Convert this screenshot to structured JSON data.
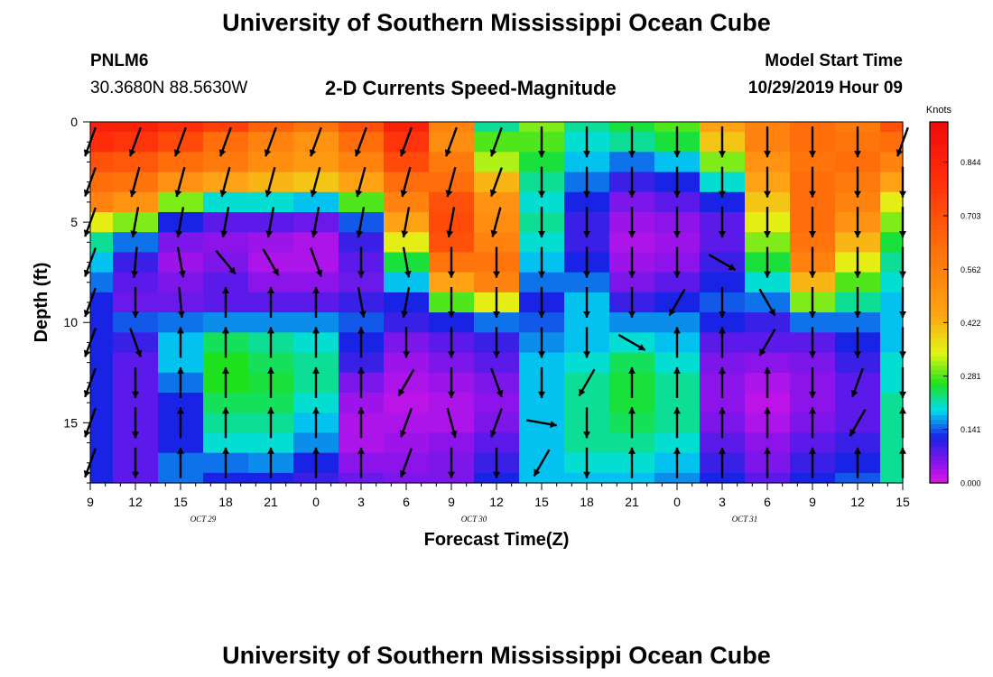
{
  "header": {
    "title": "University of Southern Mississippi Ocean Cube",
    "station": "PNLM6",
    "coords": "30.3680N 88.5630W",
    "product": "2-D Currents Speed-Magnitude",
    "model_label": "Model Start Time",
    "model_time": "10/29/2019 Hour 09"
  },
  "footer": {
    "title": "University of Southern Mississippi Ocean Cube"
  },
  "chart_data": {
    "type": "heatmap",
    "xlabel": "Forecast Time(Z)",
    "ylabel": "Depth (ft)",
    "x_tick_labels": [
      "9",
      "12",
      "15",
      "18",
      "21",
      "0",
      "3",
      "6",
      "9",
      "12",
      "15",
      "18",
      "21",
      "0",
      "3",
      "6",
      "9",
      "12",
      "15"
    ],
    "date_labels": [
      {
        "label": "OCT 29",
        "after_tick": 2
      },
      {
        "label": "OCT 30",
        "after_tick": 8
      },
      {
        "label": "OCT 31",
        "after_tick": 14
      }
    ],
    "y_ticks": [
      0,
      5,
      10,
      15
    ],
    "ylim": [
      0,
      18
    ],
    "x_hours": 54,
    "colorbar": {
      "unit": "Knots",
      "ticks": [
        "0.844",
        "0.703",
        "0.562",
        "0.422",
        "0.281",
        "0.141",
        "0.000"
      ],
      "range": [
        0,
        0.95
      ]
    },
    "depths_ft": [
      0,
      1,
      2,
      3,
      4,
      5,
      6,
      7,
      8,
      9,
      10,
      11,
      12,
      13,
      14,
      15,
      16,
      17,
      18
    ],
    "speed_profiles_knots": [
      {
        "hour": 0,
        "values": [
          0.85,
          0.8,
          0.7,
          0.62,
          0.55,
          0.35,
          0.22,
          0.18,
          0.15,
          0.12,
          0.12,
          0.12,
          0.12,
          0.12,
          0.12,
          0.12,
          0.12,
          0.12,
          0.12
        ]
      },
      {
        "hour": 3,
        "values": [
          0.85,
          0.78,
          0.68,
          0.6,
          0.5,
          0.3,
          0.15,
          0.1,
          0.08,
          0.07,
          0.14,
          0.1,
          0.08,
          0.08,
          0.08,
          0.08,
          0.08,
          0.08,
          0.08
        ]
      },
      {
        "hour": 6,
        "values": [
          0.8,
          0.72,
          0.62,
          0.5,
          0.3,
          0.12,
          0.06,
          0.04,
          0.06,
          0.07,
          0.15,
          0.18,
          0.18,
          0.15,
          0.12,
          0.12,
          0.12,
          0.15,
          0.15
        ]
      },
      {
        "hour": 9,
        "values": [
          0.75,
          0.62,
          0.58,
          0.45,
          0.2,
          0.08,
          0.05,
          0.06,
          0.08,
          0.08,
          0.16,
          0.24,
          0.26,
          0.26,
          0.24,
          0.22,
          0.2,
          0.15,
          0.12
        ]
      },
      {
        "hour": 12,
        "values": [
          0.65,
          0.55,
          0.52,
          0.42,
          0.2,
          0.08,
          0.04,
          0.03,
          0.05,
          0.08,
          0.16,
          0.22,
          0.24,
          0.25,
          0.24,
          0.22,
          0.2,
          0.16,
          0.12
        ]
      },
      {
        "hour": 15,
        "values": [
          0.6,
          0.5,
          0.48,
          0.4,
          0.18,
          0.07,
          0.03,
          0.03,
          0.05,
          0.08,
          0.16,
          0.2,
          0.22,
          0.22,
          0.2,
          0.18,
          0.16,
          0.12,
          0.1
        ]
      },
      {
        "hour": 18,
        "values": [
          0.7,
          0.62,
          0.55,
          0.45,
          0.28,
          0.14,
          0.1,
          0.08,
          0.07,
          0.1,
          0.14,
          0.12,
          0.1,
          0.06,
          0.04,
          0.03,
          0.03,
          0.05,
          0.07
        ]
      },
      {
        "hour": 21,
        "values": [
          0.85,
          0.78,
          0.72,
          0.62,
          0.55,
          0.45,
          0.35,
          0.25,
          0.18,
          0.12,
          0.1,
          0.06,
          0.04,
          0.03,
          0.02,
          0.03,
          0.04,
          0.05,
          0.06
        ]
      },
      {
        "hour": 24,
        "values": [
          0.55,
          0.52,
          0.58,
          0.62,
          0.7,
          0.72,
          0.7,
          0.6,
          0.45,
          0.28,
          0.12,
          0.08,
          0.06,
          0.04,
          0.03,
          0.03,
          0.05,
          0.06,
          0.06
        ]
      },
      {
        "hour": 27,
        "values": [
          0.22,
          0.28,
          0.32,
          0.42,
          0.5,
          0.52,
          0.55,
          0.6,
          0.55,
          0.35,
          0.15,
          0.1,
          0.08,
          0.06,
          0.05,
          0.06,
          0.08,
          0.1,
          0.12
        ]
      },
      {
        "hour": 30,
        "values": [
          0.3,
          0.28,
          0.25,
          0.22,
          0.2,
          0.22,
          0.2,
          0.18,
          0.15,
          0.12,
          0.14,
          0.16,
          0.18,
          0.18,
          0.18,
          0.18,
          0.18,
          0.18,
          0.18
        ]
      },
      {
        "hour": 33,
        "values": [
          0.22,
          0.2,
          0.18,
          0.15,
          0.12,
          0.1,
          0.1,
          0.12,
          0.15,
          0.18,
          0.18,
          0.18,
          0.2,
          0.22,
          0.22,
          0.22,
          0.22,
          0.2,
          0.18
        ]
      },
      {
        "hour": 36,
        "values": [
          0.25,
          0.22,
          0.15,
          0.1,
          0.06,
          0.04,
          0.03,
          0.04,
          0.06,
          0.1,
          0.16,
          0.2,
          0.24,
          0.25,
          0.25,
          0.24,
          0.22,
          0.2,
          0.18
        ]
      },
      {
        "hour": 39,
        "values": [
          0.28,
          0.25,
          0.18,
          0.12,
          0.08,
          0.05,
          0.04,
          0.05,
          0.08,
          0.12,
          0.16,
          0.18,
          0.2,
          0.22,
          0.22,
          0.22,
          0.2,
          0.18,
          0.16
        ]
      },
      {
        "hour": 42,
        "values": [
          0.45,
          0.4,
          0.3,
          0.2,
          0.12,
          0.08,
          0.08,
          0.1,
          0.12,
          0.14,
          0.12,
          0.08,
          0.06,
          0.05,
          0.05,
          0.06,
          0.08,
          0.1,
          0.12
        ]
      },
      {
        "hour": 45,
        "values": [
          0.55,
          0.55,
          0.5,
          0.45,
          0.4,
          0.35,
          0.3,
          0.25,
          0.2,
          0.15,
          0.1,
          0.08,
          0.05,
          0.03,
          0.02,
          0.03,
          0.05,
          0.06,
          0.08
        ]
      },
      {
        "hour": 48,
        "values": [
          0.62,
          0.62,
          0.6,
          0.62,
          0.62,
          0.62,
          0.6,
          0.55,
          0.42,
          0.3,
          0.15,
          0.08,
          0.06,
          0.05,
          0.05,
          0.06,
          0.08,
          0.1,
          0.12
        ]
      },
      {
        "hour": 51,
        "values": [
          0.58,
          0.6,
          0.62,
          0.58,
          0.55,
          0.5,
          0.42,
          0.35,
          0.28,
          0.22,
          0.15,
          0.12,
          0.1,
          0.08,
          0.08,
          0.08,
          0.1,
          0.12,
          0.14
        ]
      },
      {
        "hour": 54,
        "values": [
          0.7,
          0.62,
          0.55,
          0.45,
          0.35,
          0.3,
          0.25,
          0.22,
          0.2,
          0.18,
          0.18,
          0.18,
          0.2,
          0.2,
          0.22,
          0.22,
          0.22,
          0.22,
          0.22
        ]
      }
    ],
    "vector_hours": [
      0,
      3,
      6,
      9,
      12,
      15,
      18,
      21,
      24,
      27,
      30,
      33,
      36,
      39,
      42,
      45,
      48,
      51,
      54
    ],
    "vector_depths_ft": [
      1,
      3,
      5,
      7,
      9,
      11,
      13,
      15,
      17
    ],
    "vector_directions_deg": [
      [
        200,
        200,
        200,
        200,
        200,
        200,
        200,
        200,
        200
      ],
      [
        200,
        195,
        190,
        185,
        180,
        160,
        180,
        180,
        180
      ],
      [
        200,
        195,
        190,
        170,
        175,
        0,
        0,
        0,
        0
      ],
      [
        200,
        195,
        190,
        140,
        0,
        0,
        0,
        0,
        0
      ],
      [
        200,
        195,
        190,
        150,
        0,
        0,
        0,
        0,
        0
      ],
      [
        200,
        195,
        190,
        160,
        0,
        0,
        0,
        0,
        0
      ],
      [
        200,
        195,
        190,
        180,
        170,
        0,
        0,
        0,
        0
      ],
      [
        200,
        195,
        190,
        170,
        190,
        180,
        210,
        200,
        200
      ],
      [
        200,
        195,
        190,
        180,
        180,
        180,
        180,
        165,
        180
      ],
      [
        200,
        200,
        195,
        180,
        180,
        180,
        160,
        200,
        180
      ],
      [
        180,
        180,
        180,
        180,
        180,
        180,
        180,
        100,
        210
      ],
      [
        180,
        180,
        180,
        180,
        180,
        180,
        210,
        180,
        180
      ],
      [
        180,
        180,
        180,
        180,
        180,
        120,
        0,
        0,
        0
      ],
      [
        180,
        180,
        180,
        180,
        210,
        0,
        0,
        0,
        0
      ],
      [
        180,
        180,
        180,
        120,
        180,
        0,
        0,
        0,
        0
      ],
      [
        180,
        180,
        180,
        180,
        150,
        210,
        0,
        0,
        0
      ],
      [
        180,
        180,
        180,
        180,
        180,
        180,
        180,
        0,
        0
      ],
      [
        180,
        180,
        180,
        180,
        180,
        180,
        200,
        210,
        0
      ],
      [
        200,
        180,
        180,
        180,
        180,
        180,
        180,
        0,
        0
      ]
    ]
  }
}
